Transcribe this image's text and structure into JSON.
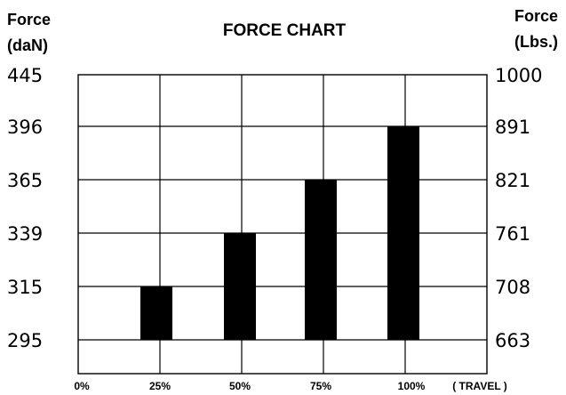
{
  "chart_data": {
    "type": "bar",
    "title": "FORCE CHART",
    "left_axis_label": [
      "Force",
      "(daN)"
    ],
    "right_axis_label": [
      "Force",
      "(Lbs.)"
    ],
    "x_label": "( TRAVEL )",
    "x_ticks": [
      "0%",
      "25%",
      "50%",
      "75%",
      "100%"
    ],
    "left_ticks": [
      445,
      396,
      365,
      339,
      315,
      295
    ],
    "right_ticks": [
      "1000",
      "891",
      "821",
      "761",
      "708",
      "663"
    ],
    "grid": true,
    "bars": [
      {
        "travel": "25%",
        "force_daN": 315
      },
      {
        "travel": "50%",
        "force_daN": 339
      },
      {
        "travel": "75%",
        "force_daN": 365
      },
      {
        "travel": "100%",
        "force_daN": 396
      }
    ]
  }
}
